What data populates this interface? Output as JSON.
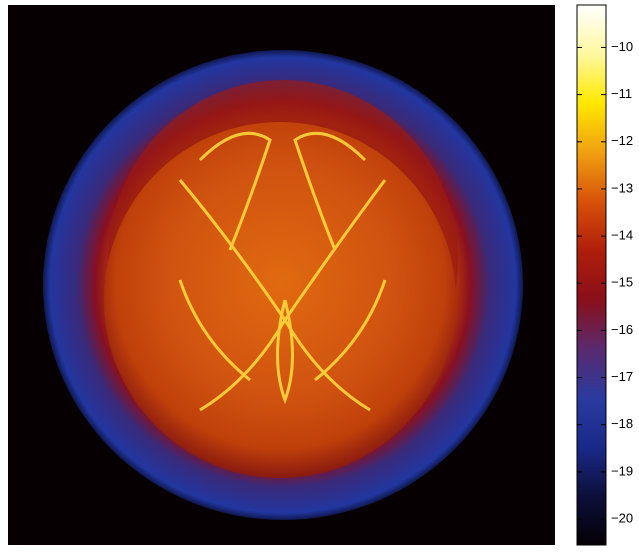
{
  "chart_data": {
    "type": "heatmap",
    "zlim": [
      -20.55,
      -9.1
    ],
    "zticks": [
      {
        "value": -10,
        "label": "−10"
      },
      {
        "value": -11,
        "label": "−11"
      },
      {
        "value": -12,
        "label": "−12"
      },
      {
        "value": -13,
        "label": "−13"
      },
      {
        "value": -14,
        "label": "−14"
      },
      {
        "value": -15,
        "label": "−15"
      },
      {
        "value": -16,
        "label": "−16"
      },
      {
        "value": -17,
        "label": "−17"
      },
      {
        "value": -18,
        "label": "−18"
      },
      {
        "value": -19,
        "label": "−19"
      },
      {
        "value": -20,
        "label": "−20"
      }
    ],
    "colormap": [
      "#050005",
      "#0d0f3a",
      "#1a2a8a",
      "#2a3a9e",
      "#5a2a6e",
      "#8a0f1a",
      "#b01e0a",
      "#d8520a",
      "#f0a010",
      "#ffe800",
      "#fff8a0",
      "#ffffff"
    ]
  }
}
